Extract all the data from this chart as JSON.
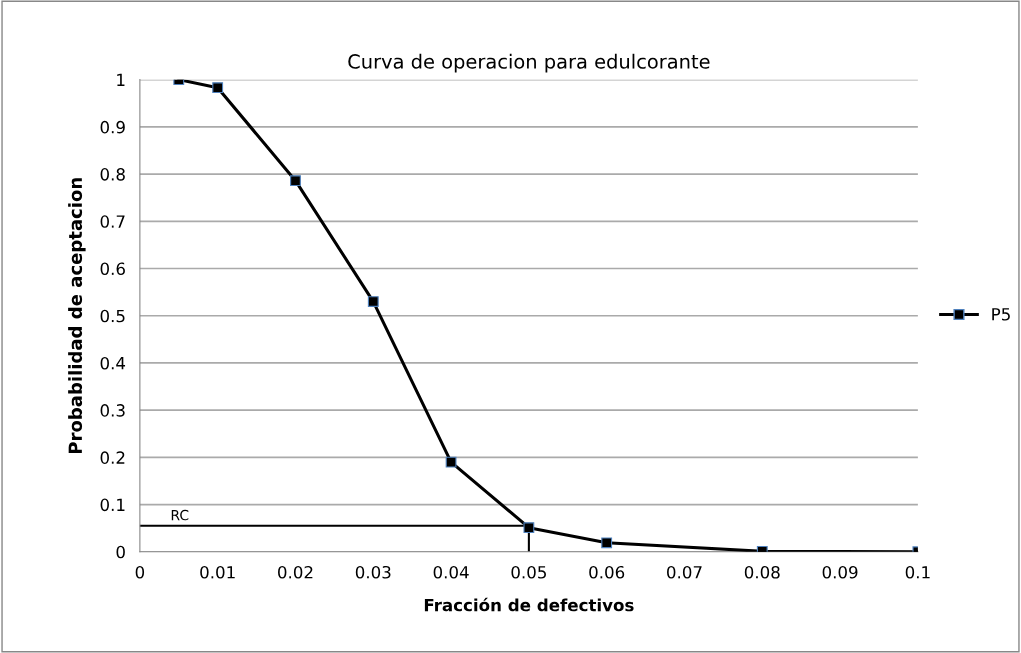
{
  "chart_data": {
    "type": "line",
    "title": "Curva de operacion para edulcorante",
    "xlabel": "Fracción de defectivos",
    "ylabel": "Probabilidad de aceptacion",
    "xlim": [
      0,
      0.1
    ],
    "xticks": [
      {
        "value": 0,
        "label": "0"
      },
      0.01,
      0.02,
      0.03,
      0.04,
      0.05,
      0.06,
      0.07,
      0.08,
      0.09,
      0.1
    ],
    "ylim": [
      0,
      1
    ],
    "yticks": [
      {
        "value": 0,
        "label": "0"
      },
      0.1,
      0.2,
      0.3,
      0.4,
      0.5,
      0.6,
      0.7,
      0.8,
      0.9,
      {
        "value": 1,
        "label": "1"
      }
    ],
    "grid": "y",
    "legend": "right",
    "marker": "square",
    "line_style": "solid",
    "series": [
      {
        "name": "P5",
        "color": "#000000",
        "x": [
          0.005,
          0.01,
          0.02,
          0.03,
          0.04,
          0.05,
          0.06,
          0.08,
          0.1
        ],
        "values": [
          1.0,
          0.983,
          0.786,
          0.53,
          0.19,
          0.051,
          0.019,
          0.001,
          0.0
        ]
      },
      {
        "type": "line",
        "color": "#000000",
        "marker": "none",
        "x": [
          0,
          0.05,
          0.05
        ],
        "values": [
          0.055,
          0.055,
          0
        ]
      }
    ],
    "annotations": [
      {
        "text": "RC",
        "x": 0.0,
        "y": 0.055
      }
    ]
  }
}
